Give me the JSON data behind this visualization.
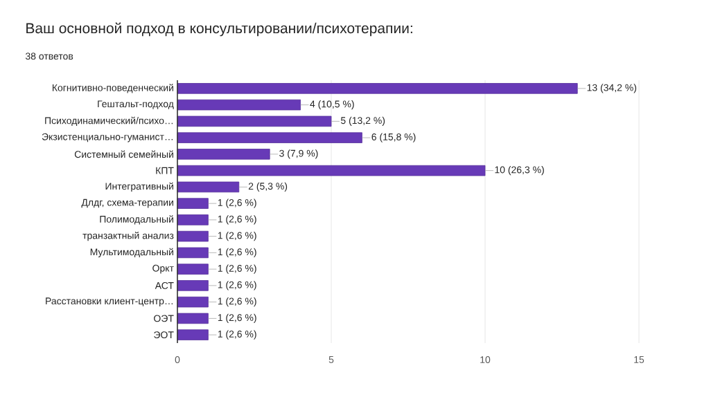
{
  "chart_data": {
    "type": "bar",
    "orientation": "horizontal",
    "title": "Ваш основной подход в консультировании/психотерапии:",
    "subtitle": "38 ответов",
    "categories": [
      "Когнитивно-поведенческий",
      "Гештальт-подход",
      "Психодинамический/психо…",
      "Экзистенциально-гуманист…",
      "Системный семейный",
      "КПТ",
      "Интегративный",
      "Длдг, схема-терапии",
      "Полимодальный",
      "транзактный анализ",
      "Мультимодальный",
      "Оркт",
      "АСТ",
      "Расстановки клиент-центр…",
      "ОЭТ",
      "ЭОТ"
    ],
    "values": [
      13,
      4,
      5,
      6,
      3,
      10,
      2,
      1,
      1,
      1,
      1,
      1,
      1,
      1,
      1,
      1
    ],
    "value_labels": [
      "13 (34,2 %)",
      "4 (10,5 %)",
      "5 (13,2 %)",
      "6 (15,8 %)",
      "3 (7,9 %)",
      "10 (26,3 %)",
      "2 (5,3 %)",
      "1 (2,6 %)",
      "1 (2,6 %)",
      "1 (2,6 %)",
      "1 (2,6 %)",
      "1 (2,6 %)",
      "1 (2,6 %)",
      "1 (2,6 %)",
      "1 (2,6 %)",
      "1 (2,6 %)"
    ],
    "color": "#673ab7",
    "xlim": [
      0,
      15
    ],
    "xticks": [
      0,
      5,
      10,
      15
    ],
    "grid": "x"
  }
}
